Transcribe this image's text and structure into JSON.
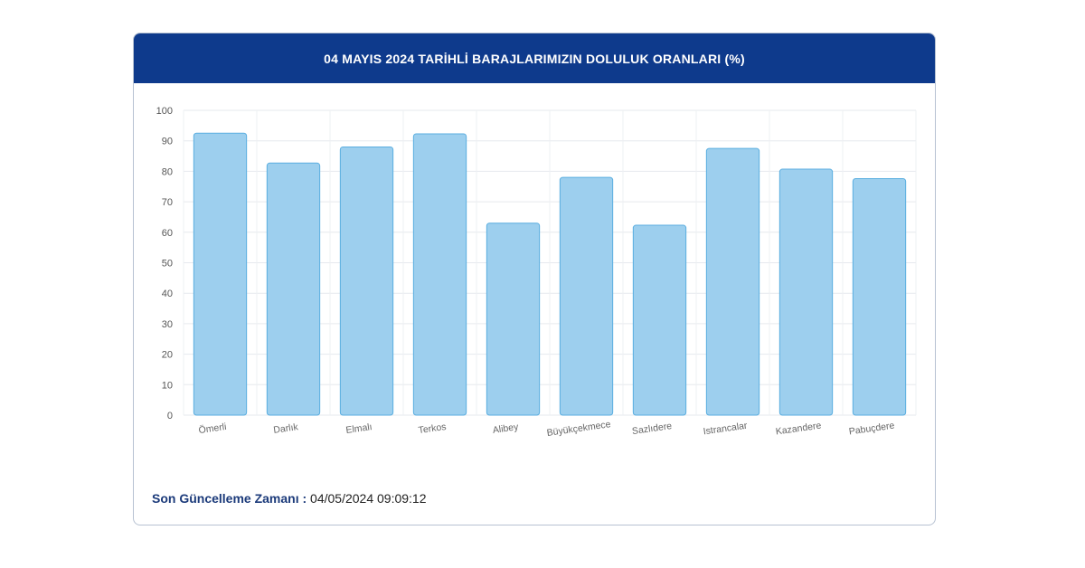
{
  "header": {
    "title": "04 MAYIS 2024 TARİHLİ BARAJLARIMIZIN DOLULUK ORANLARI (%)"
  },
  "footer": {
    "label": "Son Güncelleme Zamanı :",
    "value": "04/05/2024 09:09:12"
  },
  "colors": {
    "header_bg": "#0e3a8c",
    "bar_fill": "#9dcfee",
    "bar_stroke": "#5aaee0"
  },
  "chart_data": {
    "type": "bar",
    "title": "04 MAYIS 2024 TARİHLİ BARAJLARIMIZIN DOLULUK ORANLARI (%)",
    "categories": [
      "Ömerli",
      "Darlık",
      "Elmalı",
      "Terkos",
      "Alibey",
      "Büyükçekmece",
      "Sazlıdere",
      "Istrancalar",
      "Kazandere",
      "Pabuçdere"
    ],
    "values": [
      92.5,
      82.7,
      88,
      92.3,
      63,
      78,
      62.3,
      87.5,
      80.7,
      77.6
    ],
    "ylim": [
      0,
      100
    ],
    "yticks": [
      "0",
      "10",
      "20",
      "30",
      "40",
      "50",
      "60",
      "70",
      "80",
      "90",
      "100"
    ],
    "xlabel": "",
    "ylabel": "",
    "grid": true,
    "legend": "none"
  }
}
